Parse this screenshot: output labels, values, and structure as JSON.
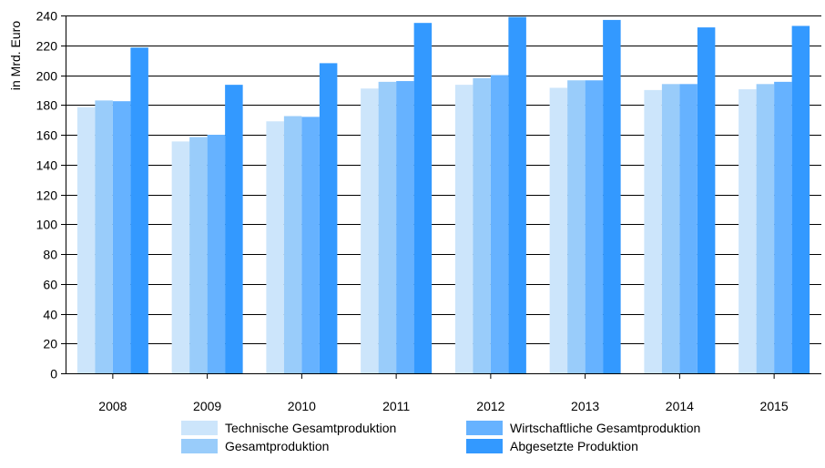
{
  "chart_data": {
    "type": "bar",
    "title": "",
    "xlabel": "",
    "ylabel": "in Mrd. Euro",
    "ylim": [
      0,
      240
    ],
    "yticks": [
      0,
      20,
      40,
      60,
      80,
      100,
      120,
      140,
      160,
      180,
      200,
      220,
      240
    ],
    "grid": true,
    "legend_position": "bottom",
    "categories": [
      "2008",
      "2009",
      "2010",
      "2011",
      "2012",
      "2013",
      "2014",
      "2015"
    ],
    "series": [
      {
        "name": "Technische Gesamtproduktion",
        "color": "#cce5fb",
        "values": [
          178.5,
          155.5,
          169.0,
          191.0,
          193.5,
          191.5,
          190.0,
          190.5
        ]
      },
      {
        "name": "Gesamtproduktion",
        "color": "#99ccfa",
        "values": [
          183.0,
          158.5,
          172.5,
          195.5,
          198.0,
          196.5,
          194.0,
          194.0
        ]
      },
      {
        "name": "Wirtschaftliche Gesamtproduktion",
        "color": "#66b2ff",
        "values": [
          182.5,
          160.0,
          172.0,
          196.0,
          200.0,
          196.5,
          194.0,
          195.5
        ]
      },
      {
        "name": "Abgesetzte Produktion",
        "color": "#3399ff",
        "values": [
          218.5,
          193.5,
          208.0,
          235.0,
          239.0,
          237.0,
          232.0,
          233.0
        ]
      }
    ]
  }
}
